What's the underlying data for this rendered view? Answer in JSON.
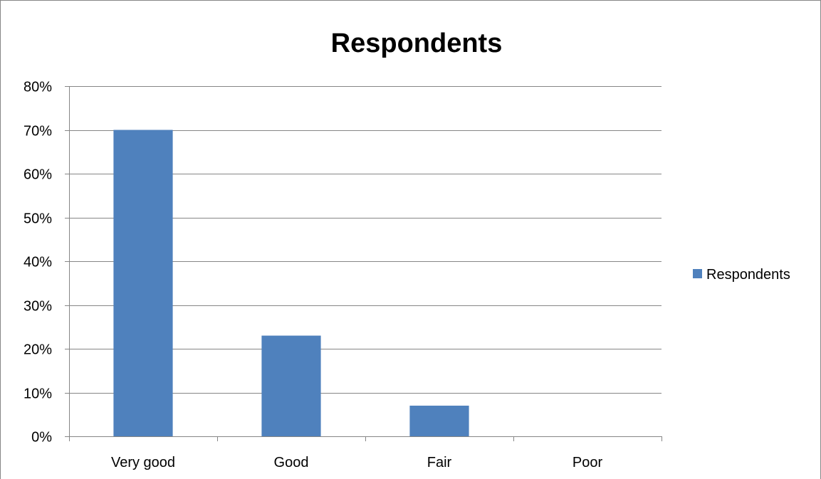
{
  "chart_data": {
    "type": "bar",
    "title": "Respondents",
    "xlabel": "",
    "ylabel": "",
    "categories": [
      "Very good",
      "Good",
      "Fair",
      "Poor"
    ],
    "series": [
      {
        "name": "Respondents",
        "values": [
          70,
          23,
          7,
          0
        ]
      }
    ],
    "ylim": [
      0,
      80
    ],
    "ytick_step": 10,
    "ytick_suffix": "%",
    "grid": true,
    "legend": "right",
    "colors": {
      "bar": "#4F81BD",
      "grid": "#868686",
      "axis": "#868686",
      "frame": "#868686"
    }
  }
}
